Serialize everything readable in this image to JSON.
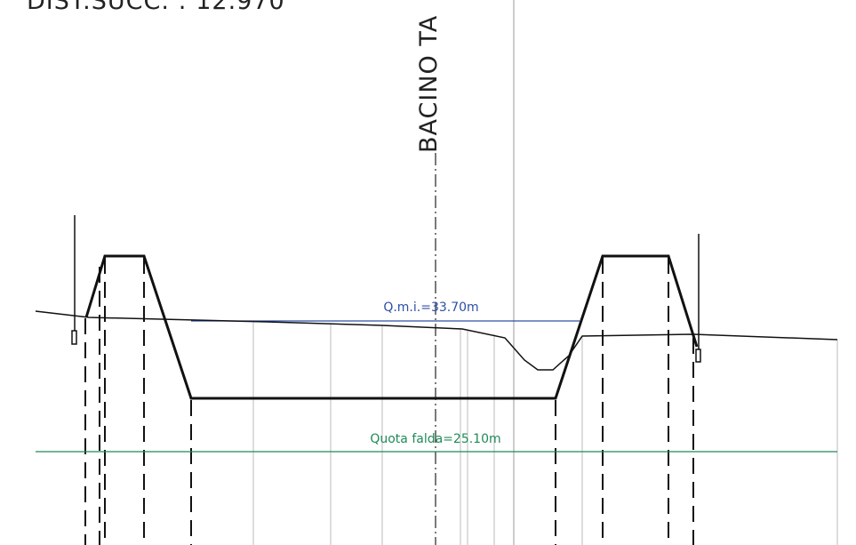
{
  "header": {
    "distance": "DIST.SUCC. : 12.970",
    "section": "BACINO TA"
  },
  "levels": {
    "water": "Q.m.i.=33.70m",
    "groundwater": "Quota falda=25.10m"
  }
}
